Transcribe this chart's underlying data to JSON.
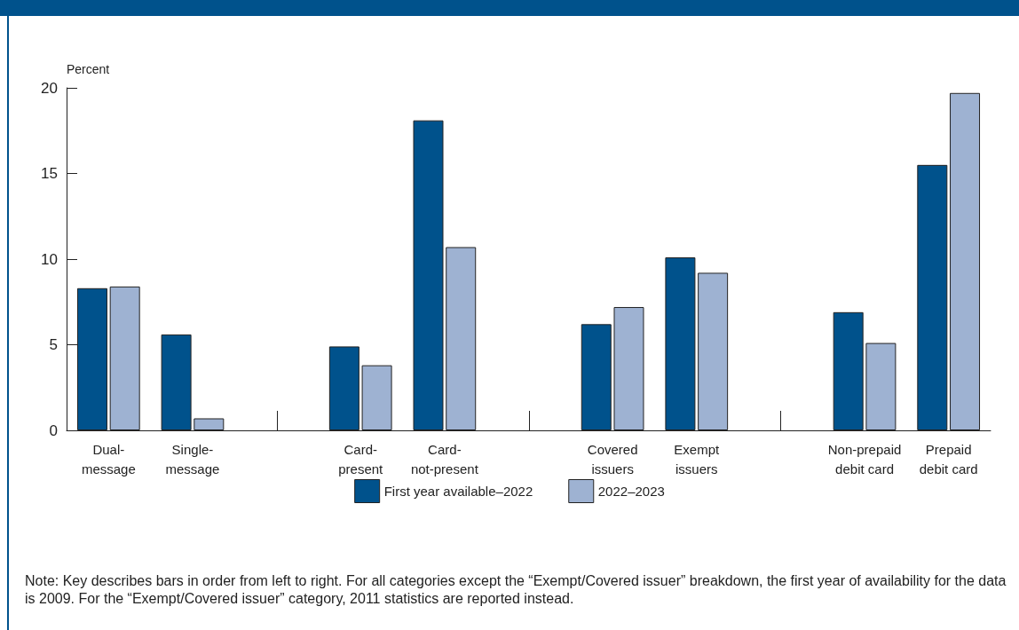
{
  "chart_data": {
    "type": "bar",
    "ylabel": "Percent",
    "categories": [
      "Dual-\nmessage",
      "Single-\nmessage",
      null,
      "Card-\npresent",
      "Card-\nnot-present",
      null,
      "Covered\nissuers",
      "Exempt\nissuers",
      null,
      "Non-prepaid\ndebit card",
      "Prepaid\ndebit card"
    ],
    "series": [
      {
        "name": "First year available–2022",
        "color": "#00528c",
        "values": [
          8.3,
          5.6,
          null,
          4.9,
          18.1,
          null,
          6.2,
          10.1,
          null,
          6.9,
          15.5
        ]
      },
      {
        "name": "2022–2023",
        "color": "#9eb2d2",
        "values": [
          8.4,
          0.7,
          null,
          3.8,
          10.7,
          null,
          7.2,
          9.2,
          null,
          5.1,
          19.7
        ]
      }
    ],
    "ylim": [
      0,
      20
    ],
    "yticks": [
      0,
      5,
      10,
      15,
      20
    ],
    "grid": false,
    "legend": "bottom",
    "annotations": [
      "Note: Key describes bars in order from left to right. For all categories except the “Exempt/Covered issuer” breakdown, the first year of availability for the data is 2009. For the “Exempt/Covered issuer” category, 2011 statistics are reported instead."
    ]
  }
}
